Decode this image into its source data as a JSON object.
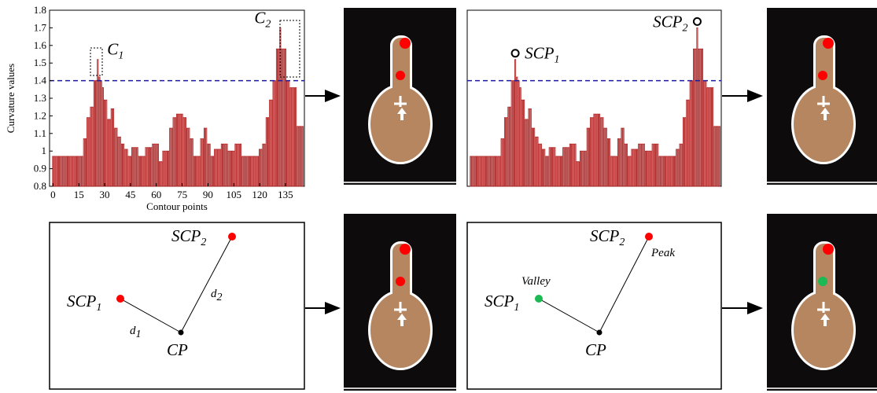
{
  "chart_data": [
    {
      "type": "bar",
      "ylabel": "Curvature values",
      "xlabel": "Contour points",
      "color": "#b22222",
      "threshold": 1.4,
      "threshold_color": "#1a1aa0",
      "x": [
        0,
        1,
        2,
        3,
        4,
        5,
        6,
        7,
        8,
        9,
        10,
        11,
        12,
        13,
        14,
        15,
        16,
        17,
        18,
        19,
        20,
        21,
        22,
        23,
        24,
        25,
        26,
        27,
        28,
        29,
        30,
        31,
        32,
        33,
        34,
        35,
        36,
        37,
        38,
        39,
        40,
        41,
        42,
        43,
        44,
        45,
        46,
        47,
        48,
        49,
        50,
        51,
        52,
        53,
        54,
        55,
        56,
        57,
        58,
        59,
        60,
        61,
        62,
        63,
        64,
        65,
        66,
        67,
        68,
        69,
        70,
        71,
        72,
        73,
        74,
        75,
        76,
        77,
        78,
        79,
        80,
        81,
        82,
        83,
        84,
        85,
        86,
        87,
        88,
        89,
        90,
        91,
        92,
        93,
        94,
        95,
        96,
        97,
        98,
        99,
        100,
        101,
        102,
        103,
        104,
        105,
        106,
        107,
        108,
        109,
        110,
        111,
        112,
        113,
        114,
        115,
        116,
        117,
        118,
        119,
        120,
        121,
        122,
        123,
        124,
        125,
        126,
        127,
        128,
        129,
        130,
        131,
        132,
        133,
        134,
        135,
        136,
        137,
        138,
        139,
        140,
        141,
        142,
        143,
        144,
        145
      ],
      "values": [
        0.97,
        0.97,
        0.97,
        0.97,
        0.97,
        0.97,
        0.97,
        0.97,
        0.97,
        0.97,
        0.97,
        0.97,
        0.97,
        0.97,
        0.97,
        0.97,
        0.97,
        0.97,
        1.07,
        1.07,
        1.19,
        1.19,
        1.25,
        1.25,
        1.4,
        1.4,
        1.52,
        1.42,
        1.4,
        1.36,
        1.29,
        1.29,
        1.18,
        1.18,
        1.24,
        1.24,
        1.13,
        1.13,
        1.08,
        1.08,
        1.04,
        1.04,
        1.01,
        1.01,
        0.97,
        0.97,
        1.02,
        1.02,
        1.02,
        1.02,
        0.97,
        0.97,
        0.97,
        0.97,
        1.02,
        1.02,
        1.02,
        1.02,
        1.04,
        1.04,
        1.04,
        1.04,
        0.94,
        0.94,
        1.0,
        1.0,
        1.0,
        1.0,
        1.13,
        1.13,
        1.19,
        1.19,
        1.21,
        1.21,
        1.21,
        1.21,
        1.19,
        1.19,
        1.13,
        1.13,
        1.07,
        1.07,
        0.97,
        0.97,
        0.97,
        0.97,
        1.07,
        1.07,
        1.13,
        1.13,
        1.04,
        1.04,
        0.97,
        0.97,
        1.01,
        1.01,
        1.01,
        1.01,
        1.04,
        1.04,
        1.04,
        1.04,
        1.0,
        1.0,
        1.0,
        1.0,
        1.04,
        1.04,
        1.04,
        1.04,
        0.97,
        0.97,
        0.97,
        0.97,
        0.97,
        0.97,
        0.97,
        0.97,
        0.97,
        0.97,
        1.01,
        1.01,
        1.04,
        1.04,
        1.19,
        1.19,
        1.29,
        1.29,
        1.4,
        1.4,
        1.58,
        1.58,
        1.7,
        1.58,
        1.58,
        1.58,
        1.4,
        1.4,
        1.36,
        1.36,
        1.36,
        1.36,
        1.14,
        1.14,
        1.14,
        1.14
      ],
      "xlim": [
        -2,
        146
      ],
      "ylim": [
        0.8,
        1.8
      ],
      "xticks": [
        0,
        15,
        30,
        45,
        60,
        75,
        90,
        105,
        120,
        135
      ],
      "yticks": [
        0.8,
        0.9,
        1,
        1.1,
        1.2,
        1.3,
        1.4,
        1.5,
        1.6,
        1.7,
        1.8
      ],
      "annotations": [
        {
          "text": "C",
          "sub": "1",
          "x": 26
        },
        {
          "text": "C",
          "sub": "2",
          "x": 132
        }
      ]
    },
    {
      "type": "bar",
      "color": "#b22222",
      "threshold": 1.4,
      "threshold_color": "#1a1aa0",
      "x": [
        0,
        1,
        2,
        3,
        4,
        5,
        6,
        7,
        8,
        9,
        10,
        11,
        12,
        13,
        14,
        15,
        16,
        17,
        18,
        19,
        20,
        21,
        22,
        23,
        24,
        25,
        26,
        27,
        28,
        29,
        30,
        31,
        32,
        33,
        34,
        35,
        36,
        37,
        38,
        39,
        40,
        41,
        42,
        43,
        44,
        45,
        46,
        47,
        48,
        49,
        50,
        51,
        52,
        53,
        54,
        55,
        56,
        57,
        58,
        59,
        60,
        61,
        62,
        63,
        64,
        65,
        66,
        67,
        68,
        69,
        70,
        71,
        72,
        73,
        74,
        75,
        76,
        77,
        78,
        79,
        80,
        81,
        82,
        83,
        84,
        85,
        86,
        87,
        88,
        89,
        90,
        91,
        92,
        93,
        94,
        95,
        96,
        97,
        98,
        99,
        100,
        101,
        102,
        103,
        104,
        105,
        106,
        107,
        108,
        109,
        110,
        111,
        112,
        113,
        114,
        115,
        116,
        117,
        118,
        119,
        120,
        121,
        122,
        123,
        124,
        125,
        126,
        127,
        128,
        129,
        130,
        131,
        132,
        133,
        134,
        135,
        136,
        137,
        138,
        139,
        140,
        141,
        142,
        143,
        144,
        145
      ],
      "values": [
        0.97,
        0.97,
        0.97,
        0.97,
        0.97,
        0.97,
        0.97,
        0.97,
        0.97,
        0.97,
        0.97,
        0.97,
        0.97,
        0.97,
        0.97,
        0.97,
        0.97,
        0.97,
        1.07,
        1.07,
        1.19,
        1.19,
        1.25,
        1.25,
        1.4,
        1.4,
        1.52,
        1.42,
        1.4,
        1.36,
        1.29,
        1.29,
        1.18,
        1.18,
        1.24,
        1.24,
        1.13,
        1.13,
        1.08,
        1.08,
        1.04,
        1.04,
        1.01,
        1.01,
        0.97,
        0.97,
        1.02,
        1.02,
        1.02,
        1.02,
        0.97,
        0.97,
        0.97,
        0.97,
        1.02,
        1.02,
        1.02,
        1.02,
        1.04,
        1.04,
        1.04,
        1.04,
        0.94,
        0.94,
        1.0,
        1.0,
        1.0,
        1.0,
        1.13,
        1.13,
        1.19,
        1.19,
        1.21,
        1.21,
        1.21,
        1.21,
        1.19,
        1.19,
        1.13,
        1.13,
        1.07,
        1.07,
        0.97,
        0.97,
        0.97,
        0.97,
        1.07,
        1.07,
        1.13,
        1.13,
        1.04,
        1.04,
        0.97,
        0.97,
        1.01,
        1.01,
        1.01,
        1.01,
        1.04,
        1.04,
        1.04,
        1.04,
        1.0,
        1.0,
        1.0,
        1.0,
        1.04,
        1.04,
        1.04,
        1.04,
        0.97,
        0.97,
        0.97,
        0.97,
        0.97,
        0.97,
        0.97,
        0.97,
        0.97,
        0.97,
        1.01,
        1.01,
        1.04,
        1.04,
        1.19,
        1.19,
        1.29,
        1.29,
        1.4,
        1.4,
        1.58,
        1.58,
        1.7,
        1.58,
        1.58,
        1.58,
        1.4,
        1.4,
        1.36,
        1.36,
        1.36,
        1.36,
        1.14,
        1.14,
        1.14,
        1.14
      ],
      "xlim": [
        -2,
        146
      ],
      "ylim": [
        0.8,
        1.8
      ],
      "annotations": [
        {
          "text": "SCP",
          "sub": "1",
          "x": 26
        },
        {
          "text": "SCP",
          "sub": "2",
          "x": 132
        }
      ]
    }
  ],
  "diagrams": [
    {
      "nodes": [
        {
          "text": "SCP",
          "sub": "1"
        },
        {
          "text": "SCP",
          "sub": "2"
        },
        {
          "text": "CP"
        }
      ],
      "edges": [
        {
          "text": "d",
          "sub": "1"
        },
        {
          "text": "d",
          "sub": "2"
        }
      ]
    },
    {
      "nodes": [
        {
          "text": "SCP",
          "sub": "1"
        },
        {
          "text": "SCP",
          "sub": "2"
        },
        {
          "text": "CP"
        }
      ],
      "notes": [
        "Valley",
        "Peak"
      ]
    }
  ]
}
